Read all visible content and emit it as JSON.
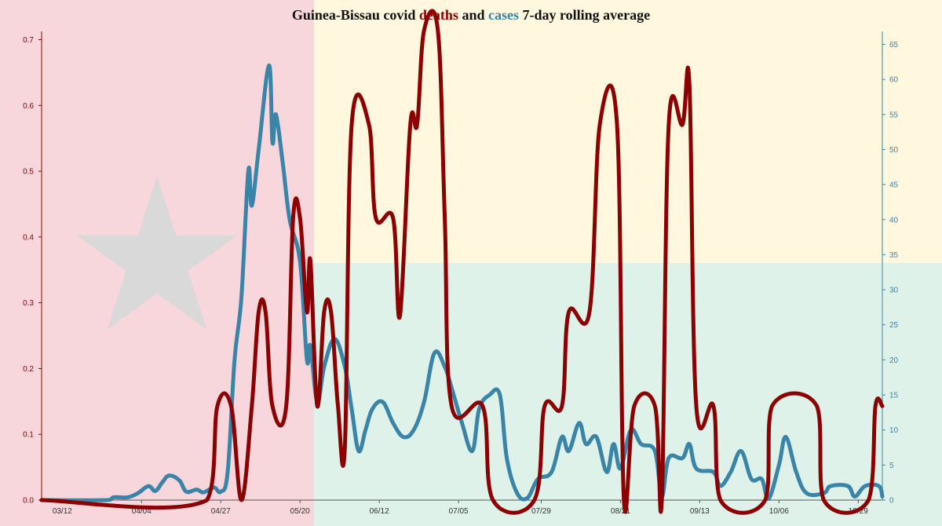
{
  "colors": {
    "deaths": "#8b0000",
    "cases": "#3a84a8",
    "flag_red": "#f8d7dc",
    "flag_yellow": "#fff7de",
    "flag_green": "#dff2ea",
    "star": "#d9d9d9"
  },
  "title": {
    "prefix": "Guinea-Bissau covid ",
    "deaths_word": "deaths",
    "middle": " and ",
    "cases_word": "cases",
    "suffix": " 7-day rolling average"
  },
  "chart_data": {
    "type": "line",
    "title": "Guinea-Bissau covid deaths and cases 7-day rolling average",
    "x_axis": {
      "type": "date",
      "range": [
        "2020-03-06",
        "2020-11-05"
      ],
      "tick_labels": [
        "03/12",
        "04/04",
        "04/27",
        "05/20",
        "06/12",
        "07/05",
        "07/29",
        "08/21",
        "09/13",
        "10/06",
        "10/29"
      ],
      "tick_dates": [
        "2020-03-12",
        "2020-04-04",
        "2020-04-27",
        "2020-05-20",
        "2020-06-12",
        "2020-07-05",
        "2020-07-29",
        "2020-08-21",
        "2020-09-13",
        "2020-10-06",
        "2020-10-29"
      ]
    },
    "y_left": {
      "series": "deaths",
      "range": [
        0,
        0.71
      ],
      "ticks": [
        0.0,
        0.1,
        0.2,
        0.3,
        0.4,
        0.5,
        0.6,
        0.7
      ],
      "tick_labels": [
        "0.0",
        "0.1",
        "0.2",
        "0.3",
        "0.4",
        "0.5",
        "0.6",
        "0.7"
      ]
    },
    "y_right": {
      "series": "cases",
      "range": [
        0,
        67
      ],
      "ticks": [
        0,
        5,
        10,
        15,
        20,
        25,
        30,
        35,
        40,
        45,
        50,
        55,
        60,
        65
      ],
      "tick_labels": [
        "0",
        "5",
        "10",
        "15",
        "20",
        "25",
        "30",
        "35",
        "40",
        "45",
        "50",
        "55",
        "60",
        "65"
      ]
    },
    "legend": "none (series named in title)",
    "grid": false,
    "series": [
      {
        "name": "deaths",
        "axis": "left",
        "points": [
          [
            "2020-03-06",
            0
          ],
          [
            "2020-04-23",
            0
          ],
          [
            "2020-04-26",
            0.143
          ],
          [
            "2020-04-30",
            0.143
          ],
          [
            "2020-05-03",
            0
          ],
          [
            "2020-05-06",
            0.143
          ],
          [
            "2020-05-08",
            0.286
          ],
          [
            "2020-05-10",
            0.286
          ],
          [
            "2020-05-12",
            0.143
          ],
          [
            "2020-05-16",
            0.143
          ],
          [
            "2020-05-18",
            0.429
          ],
          [
            "2020-05-20",
            0.429
          ],
          [
            "2020-05-22",
            0.286
          ],
          [
            "2020-05-23",
            0.364
          ],
          [
            "2020-05-25",
            0.143
          ],
          [
            "2020-05-27",
            0.286
          ],
          [
            "2020-05-29",
            0.286
          ],
          [
            "2020-05-31",
            0.143
          ],
          [
            "2020-06-02",
            0.08
          ],
          [
            "2020-06-04",
            0.571
          ],
          [
            "2020-06-09",
            0.571
          ],
          [
            "2020-06-11",
            0.429
          ],
          [
            "2020-06-16",
            0.429
          ],
          [
            "2020-06-18",
            0.28
          ],
          [
            "2020-06-21",
            0.571
          ],
          [
            "2020-06-23",
            0.571
          ],
          [
            "2020-06-25",
            0.714
          ],
          [
            "2020-06-29",
            0.714
          ],
          [
            "2020-07-01",
            0.429
          ],
          [
            "2020-07-03",
            0.143
          ],
          [
            "2020-07-12",
            0.143
          ],
          [
            "2020-07-15",
            0
          ],
          [
            "2020-07-27",
            0
          ],
          [
            "2020-07-30",
            0.143
          ],
          [
            "2020-08-04",
            0.143
          ],
          [
            "2020-08-06",
            0.286
          ],
          [
            "2020-08-12",
            0.286
          ],
          [
            "2020-08-15",
            0.571
          ],
          [
            "2020-08-20",
            0.571
          ],
          [
            "2020-08-22",
            0
          ],
          [
            "2020-08-25",
            0.143
          ],
          [
            "2020-08-31",
            0.143
          ],
          [
            "2020-09-02",
            0
          ],
          [
            "2020-09-04",
            0.571
          ],
          [
            "2020-09-08",
            0.571
          ],
          [
            "2020-09-10",
            0.633
          ],
          [
            "2020-09-12",
            0.143
          ],
          [
            "2020-09-17",
            0.143
          ],
          [
            "2020-09-19",
            0
          ],
          [
            "2020-10-02",
            0
          ],
          [
            "2020-10-04",
            0.143
          ],
          [
            "2020-10-17",
            0.143
          ],
          [
            "2020-10-19",
            0
          ],
          [
            "2020-11-01",
            0
          ],
          [
            "2020-11-03",
            0.143
          ],
          [
            "2020-11-05",
            0.143
          ]
        ]
      },
      {
        "name": "cases",
        "axis": "right",
        "points": [
          [
            "2020-03-06",
            0
          ],
          [
            "2020-03-25",
            0
          ],
          [
            "2020-03-27",
            0.4
          ],
          [
            "2020-03-31",
            0.4
          ],
          [
            "2020-04-03",
            1
          ],
          [
            "2020-04-06",
            2
          ],
          [
            "2020-04-08",
            1.3
          ],
          [
            "2020-04-10",
            2.5
          ],
          [
            "2020-04-12",
            3.5
          ],
          [
            "2020-04-15",
            2.8
          ],
          [
            "2020-04-17",
            1.2
          ],
          [
            "2020-04-20",
            1.5
          ],
          [
            "2020-04-22",
            1.1
          ],
          [
            "2020-04-25",
            1.8
          ],
          [
            "2020-04-27",
            1.2
          ],
          [
            "2020-04-29",
            4
          ],
          [
            "2020-05-01",
            20
          ],
          [
            "2020-05-03",
            29
          ],
          [
            "2020-05-05",
            47
          ],
          [
            "2020-05-06",
            42
          ],
          [
            "2020-05-08",
            50
          ],
          [
            "2020-05-11",
            62
          ],
          [
            "2020-05-12",
            51
          ],
          [
            "2020-05-13",
            55
          ],
          [
            "2020-05-15",
            48
          ],
          [
            "2020-05-17",
            40
          ],
          [
            "2020-05-20",
            34
          ],
          [
            "2020-05-22",
            20
          ],
          [
            "2020-05-23",
            22
          ],
          [
            "2020-05-25",
            14
          ],
          [
            "2020-05-27",
            19
          ],
          [
            "2020-05-30",
            23
          ],
          [
            "2020-06-02",
            19
          ],
          [
            "2020-06-04",
            13
          ],
          [
            "2020-06-06",
            7
          ],
          [
            "2020-06-08",
            10
          ],
          [
            "2020-06-10",
            13
          ],
          [
            "2020-06-13",
            14
          ],
          [
            "2020-06-16",
            11
          ],
          [
            "2020-06-19",
            9
          ],
          [
            "2020-06-22",
            10
          ],
          [
            "2020-06-25",
            14
          ],
          [
            "2020-06-28",
            21
          ],
          [
            "2020-07-01",
            19
          ],
          [
            "2020-07-03",
            16
          ],
          [
            "2020-07-06",
            11
          ],
          [
            "2020-07-09",
            7
          ],
          [
            "2020-07-11",
            13
          ],
          [
            "2020-07-14",
            15
          ],
          [
            "2020-07-17",
            15
          ],
          [
            "2020-07-19",
            6
          ],
          [
            "2020-07-22",
            1
          ],
          [
            "2020-07-25",
            0.3
          ],
          [
            "2020-07-28",
            3
          ],
          [
            "2020-08-01",
            4
          ],
          [
            "2020-08-04",
            9
          ],
          [
            "2020-08-06",
            7
          ],
          [
            "2020-08-09",
            11
          ],
          [
            "2020-08-11",
            8
          ],
          [
            "2020-08-14",
            9
          ],
          [
            "2020-08-17",
            4
          ],
          [
            "2020-08-19",
            8
          ],
          [
            "2020-08-21",
            4.5
          ],
          [
            "2020-08-24",
            10
          ],
          [
            "2020-08-27",
            8
          ],
          [
            "2020-08-31",
            7
          ],
          [
            "2020-09-02",
            0.5
          ],
          [
            "2020-09-04",
            6
          ],
          [
            "2020-09-08",
            6
          ],
          [
            "2020-09-10",
            8
          ],
          [
            "2020-09-12",
            4.5
          ],
          [
            "2020-09-17",
            4
          ],
          [
            "2020-09-19",
            2
          ],
          [
            "2020-09-22",
            4
          ],
          [
            "2020-09-25",
            7
          ],
          [
            "2020-09-28",
            3
          ],
          [
            "2020-10-01",
            3
          ],
          [
            "2020-10-03",
            0.2
          ],
          [
            "2020-10-06",
            5
          ],
          [
            "2020-10-08",
            9
          ],
          [
            "2020-10-11",
            4
          ],
          [
            "2020-10-14",
            1
          ],
          [
            "2020-10-19",
            1
          ],
          [
            "2020-10-21",
            2
          ],
          [
            "2020-10-26",
            2
          ],
          [
            "2020-10-28",
            0.5
          ],
          [
            "2020-10-31",
            2
          ],
          [
            "2020-11-04",
            2
          ],
          [
            "2020-11-05",
            0.5
          ]
        ]
      }
    ]
  }
}
